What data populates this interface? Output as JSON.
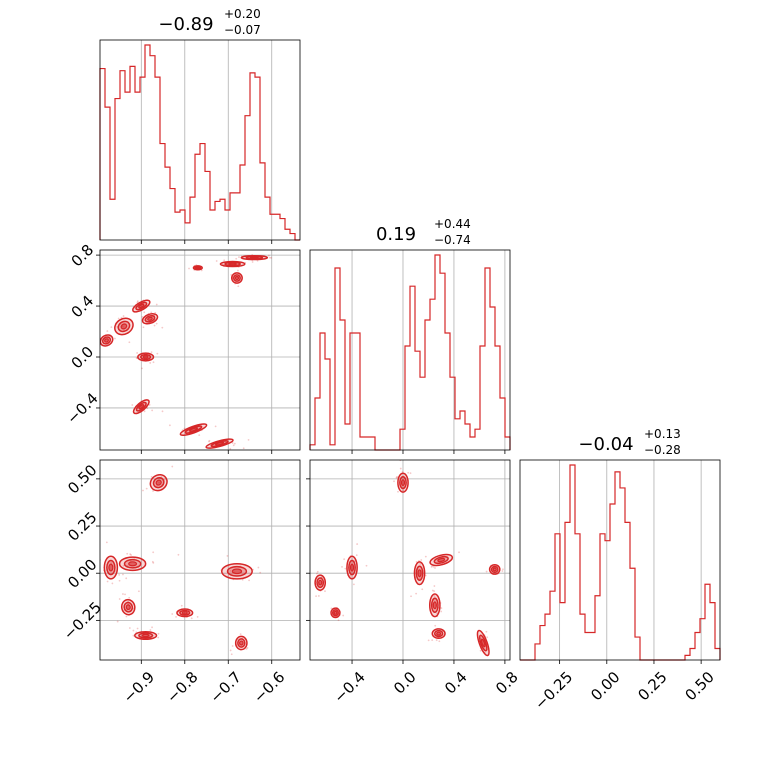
{
  "chart_data": {
    "type": "corner",
    "color": "#d62728",
    "grid": true,
    "parameters": [
      "p0",
      "p1",
      "p2"
    ],
    "titles": [
      {
        "value": "−0.89",
        "plus": "+0.20",
        "minus": "−0.07"
      },
      {
        "value": "0.19",
        "plus": "+0.44",
        "minus": "−0.74"
      },
      {
        "value": "−0.04",
        "plus": "+0.13",
        "minus": "−0.28"
      }
    ],
    "ranges": [
      [
        -0.995,
        -0.535
      ],
      [
        -0.73,
        0.84
      ],
      [
        -0.46,
        0.6
      ]
    ],
    "ticks": [
      {
        "values": [
          -0.9,
          -0.8,
          -0.7,
          -0.6
        ],
        "labels": [
          "−0.9",
          "−0.8",
          "−0.7",
          "−0.6"
        ]
      },
      {
        "values": [
          -0.4,
          0.0,
          0.4,
          0.8
        ],
        "labels": [
          "−0.4",
          "0.0",
          "0.4",
          "0.8"
        ]
      },
      {
        "values": [
          -0.25,
          0.0,
          0.25,
          0.5
        ],
        "labels": [
          "−0.25",
          "0.00",
          "0.25",
          "0.50"
        ]
      }
    ],
    "histograms": [
      {
        "param": 0,
        "counts": [
          0.8,
          0.62,
          0.19,
          0.66,
          0.79,
          0.69,
          0.81,
          0.69,
          0.76,
          0.91,
          0.86,
          0.76,
          0.45,
          0.34,
          0.24,
          0.13,
          0.14,
          0.08,
          0.2,
          0.4,
          0.45,
          0.32,
          0.14,
          0.18,
          0.19,
          0.14,
          0.22,
          0.22,
          0.35,
          0.58,
          0.78,
          0.76,
          0.36,
          0.2,
          0.12,
          0.12,
          0.1,
          0.05,
          0.03,
          0.0
        ]
      },
      {
        "param": 1,
        "counts": [
          0.02,
          0.2,
          0.45,
          0.35,
          0.02,
          0.7,
          0.5,
          0.1,
          0.45,
          0.45,
          0.05,
          0.05,
          0.05,
          0.0,
          0.0,
          0.0,
          0.0,
          0.0,
          0.08,
          0.4,
          0.63,
          0.38,
          0.28,
          0.5,
          0.58,
          0.75,
          0.68,
          0.45,
          0.28,
          0.12,
          0.15,
          0.1,
          0.05,
          0.08,
          0.4,
          0.7,
          0.55,
          0.4,
          0.2,
          0.05
        ]
      },
      {
        "param": 2,
        "counts": [
          0.0,
          0.0,
          0.0,
          0.07,
          0.15,
          0.2,
          0.3,
          0.55,
          0.25,
          0.6,
          0.85,
          0.55,
          0.2,
          0.12,
          0.12,
          0.28,
          0.55,
          0.52,
          0.68,
          0.82,
          0.75,
          0.6,
          0.4,
          0.1,
          0.0,
          0.0,
          0.0,
          0.0,
          0.0,
          0.0,
          0.0,
          0.0,
          0.0,
          0.02,
          0.05,
          0.12,
          0.18,
          0.33,
          0.25,
          0.05
        ]
      }
    ],
    "pairs": [
      {
        "xparam": 0,
        "yparam": 1,
        "clusters": [
          {
            "x": -0.98,
            "y": 0.13,
            "sx": 0.015,
            "sy": 0.04,
            "rot": -30
          },
          {
            "x": -0.94,
            "y": 0.24,
            "sx": 0.022,
            "sy": 0.06,
            "rot": -30
          },
          {
            "x": -0.9,
            "y": 0.4,
            "sx": 0.022,
            "sy": 0.03,
            "rot": -30
          },
          {
            "x": -0.88,
            "y": 0.3,
            "sx": 0.018,
            "sy": 0.035,
            "rot": -20
          },
          {
            "x": -0.89,
            "y": 0.0,
            "sx": 0.018,
            "sy": 0.03,
            "rot": 0
          },
          {
            "x": -0.9,
            "y": -0.39,
            "sx": 0.022,
            "sy": 0.03,
            "rot": -40
          },
          {
            "x": -0.78,
            "y": -0.57,
            "sx": 0.032,
            "sy": 0.025,
            "rot": -20
          },
          {
            "x": -0.72,
            "y": -0.68,
            "sx": 0.032,
            "sy": 0.022,
            "rot": -15
          },
          {
            "x": -0.68,
            "y": 0.62,
            "sx": 0.012,
            "sy": 0.04,
            "rot": 0
          },
          {
            "x": -0.69,
            "y": 0.73,
            "sx": 0.028,
            "sy": 0.02,
            "rot": 0
          },
          {
            "x": -0.77,
            "y": 0.7,
            "sx": 0.01,
            "sy": 0.015,
            "rot": 0
          },
          {
            "x": -0.64,
            "y": 0.78,
            "sx": 0.03,
            "sy": 0.015,
            "rot": 0
          }
        ]
      },
      {
        "xparam": 0,
        "yparam": 2,
        "clusters": [
          {
            "x": -0.86,
            "y": 0.48,
            "sx": 0.02,
            "sy": 0.04,
            "rot": -35
          },
          {
            "x": -0.97,
            "y": 0.03,
            "sx": 0.015,
            "sy": 0.06,
            "rot": 0
          },
          {
            "x": -0.92,
            "y": 0.05,
            "sx": 0.03,
            "sy": 0.035,
            "rot": 0
          },
          {
            "x": -0.93,
            "y": -0.18,
            "sx": 0.015,
            "sy": 0.04,
            "rot": -10
          },
          {
            "x": -0.89,
            "y": -0.33,
            "sx": 0.025,
            "sy": 0.02,
            "rot": 0
          },
          {
            "x": -0.8,
            "y": -0.21,
            "sx": 0.018,
            "sy": 0.02,
            "rot": 0
          },
          {
            "x": -0.68,
            "y": 0.01,
            "sx": 0.035,
            "sy": 0.04,
            "rot": 0
          },
          {
            "x": -0.67,
            "y": -0.37,
            "sx": 0.013,
            "sy": 0.035,
            "rot": 0
          }
        ]
      },
      {
        "xparam": 1,
        "yparam": 2,
        "clusters": [
          {
            "x": 0.0,
            "y": 0.48,
            "sx": 0.04,
            "sy": 0.05,
            "rot": 0
          },
          {
            "x": -0.65,
            "y": -0.05,
            "sx": 0.04,
            "sy": 0.04,
            "rot": 0
          },
          {
            "x": -0.53,
            "y": -0.21,
            "sx": 0.035,
            "sy": 0.025,
            "rot": 0
          },
          {
            "x": -0.4,
            "y": 0.03,
            "sx": 0.04,
            "sy": 0.06,
            "rot": 0
          },
          {
            "x": 0.13,
            "y": 0.0,
            "sx": 0.04,
            "sy": 0.06,
            "rot": 0
          },
          {
            "x": 0.3,
            "y": 0.07,
            "sx": 0.09,
            "sy": 0.025,
            "rot": -15
          },
          {
            "x": 0.25,
            "y": -0.17,
            "sx": 0.04,
            "sy": 0.06,
            "rot": 0
          },
          {
            "x": 0.28,
            "y": -0.32,
            "sx": 0.05,
            "sy": 0.025,
            "rot": 0
          },
          {
            "x": 0.63,
            "y": -0.37,
            "sx": 0.03,
            "sy": 0.07,
            "rot": -20
          },
          {
            "x": 0.72,
            "y": 0.02,
            "sx": 0.04,
            "sy": 0.025,
            "rot": 0
          }
        ]
      }
    ]
  }
}
